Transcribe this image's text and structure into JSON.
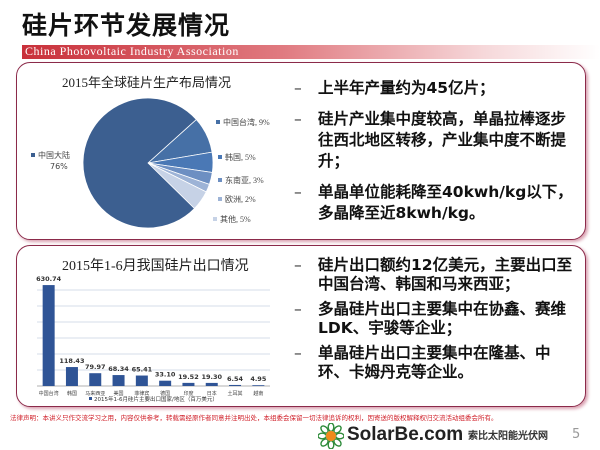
{
  "title": "硅片环节发展情况",
  "banner": "China Photovoltaic Industry Association",
  "top_bullets": [
    "上半年产量约为45亿片；",
    "硅片产业集中度较高，单晶拉棒逐步往西北地区转移，产业集中度不断提升；",
    "单晶单位能耗降至40kwh/kg以下，多晶降至近8kwh/kg。"
  ],
  "bottom_bullets": [
    "硅片出口额约12亿美元，主要出口至中国台湾、韩国和马来西亚；",
    "多晶硅片出口主要集中在协鑫、赛维LDK、宇骏等企业；",
    "单晶硅片出口主要集中在隆基、中环、卡姆丹克等企业。"
  ],
  "legal": "法律声明：本讲义只作交流学习之用，内容仅供参考，转载需经原作者同意并注明出处，本组委会保留一切法律追诉的权利，因寄送的版权解释权归交流活动组委会所有。",
  "page_number": "5",
  "watermark": {
    "brand": "SolarBe.com",
    "subtitle": "索比太阳能光伏网"
  },
  "chart_data": [
    {
      "type": "pie",
      "title": "2015年全球硅片生产布局情况",
      "slices": [
        {
          "label": "中国台湾",
          "value": 9,
          "text": "中国台湾, 9%",
          "color": "#4670a6"
        },
        {
          "label": "韩国",
          "value": 5,
          "text": "韩国, 5%",
          "color": "#4a78b5"
        },
        {
          "label": "东南亚",
          "value": 3,
          "text": "东南亚, 3%",
          "color": "#6d8fc2"
        },
        {
          "label": "欧洲",
          "value": 2,
          "text": "欧洲, 2%",
          "color": "#9db3d6"
        },
        {
          "label": "其他",
          "value": 5,
          "text": "其他, 5%",
          "color": "#c6d2e6"
        },
        {
          "label": "中国大陆",
          "value": 76,
          "text": "中国大陆",
          "pct": "76%",
          "color": "#3c5f90"
        }
      ]
    },
    {
      "type": "bar",
      "title": "2015年1-6月我国硅片出口情况",
      "categories": [
        "中国台湾",
        "韩国",
        "马来西亚",
        "美国",
        "菲律宾",
        "德国",
        "印度",
        "日本",
        "土耳其",
        "越南"
      ],
      "values": [
        630.74,
        118.43,
        79.97,
        68.34,
        65.41,
        33.1,
        19.52,
        19.3,
        6.54,
        4.95
      ],
      "value_labels": [
        "630.74",
        "118.43",
        "79.97",
        "68.34",
        "65.41",
        "33.10",
        "19.52",
        "19.30",
        "6.54",
        "4.95"
      ],
      "legend": "2015年1-6月硅片主要出口国家/地区（百万美元）",
      "ylim": [
        0,
        650
      ],
      "grid": true,
      "color": "#2f5496",
      "legend_position": "bottom"
    }
  ]
}
